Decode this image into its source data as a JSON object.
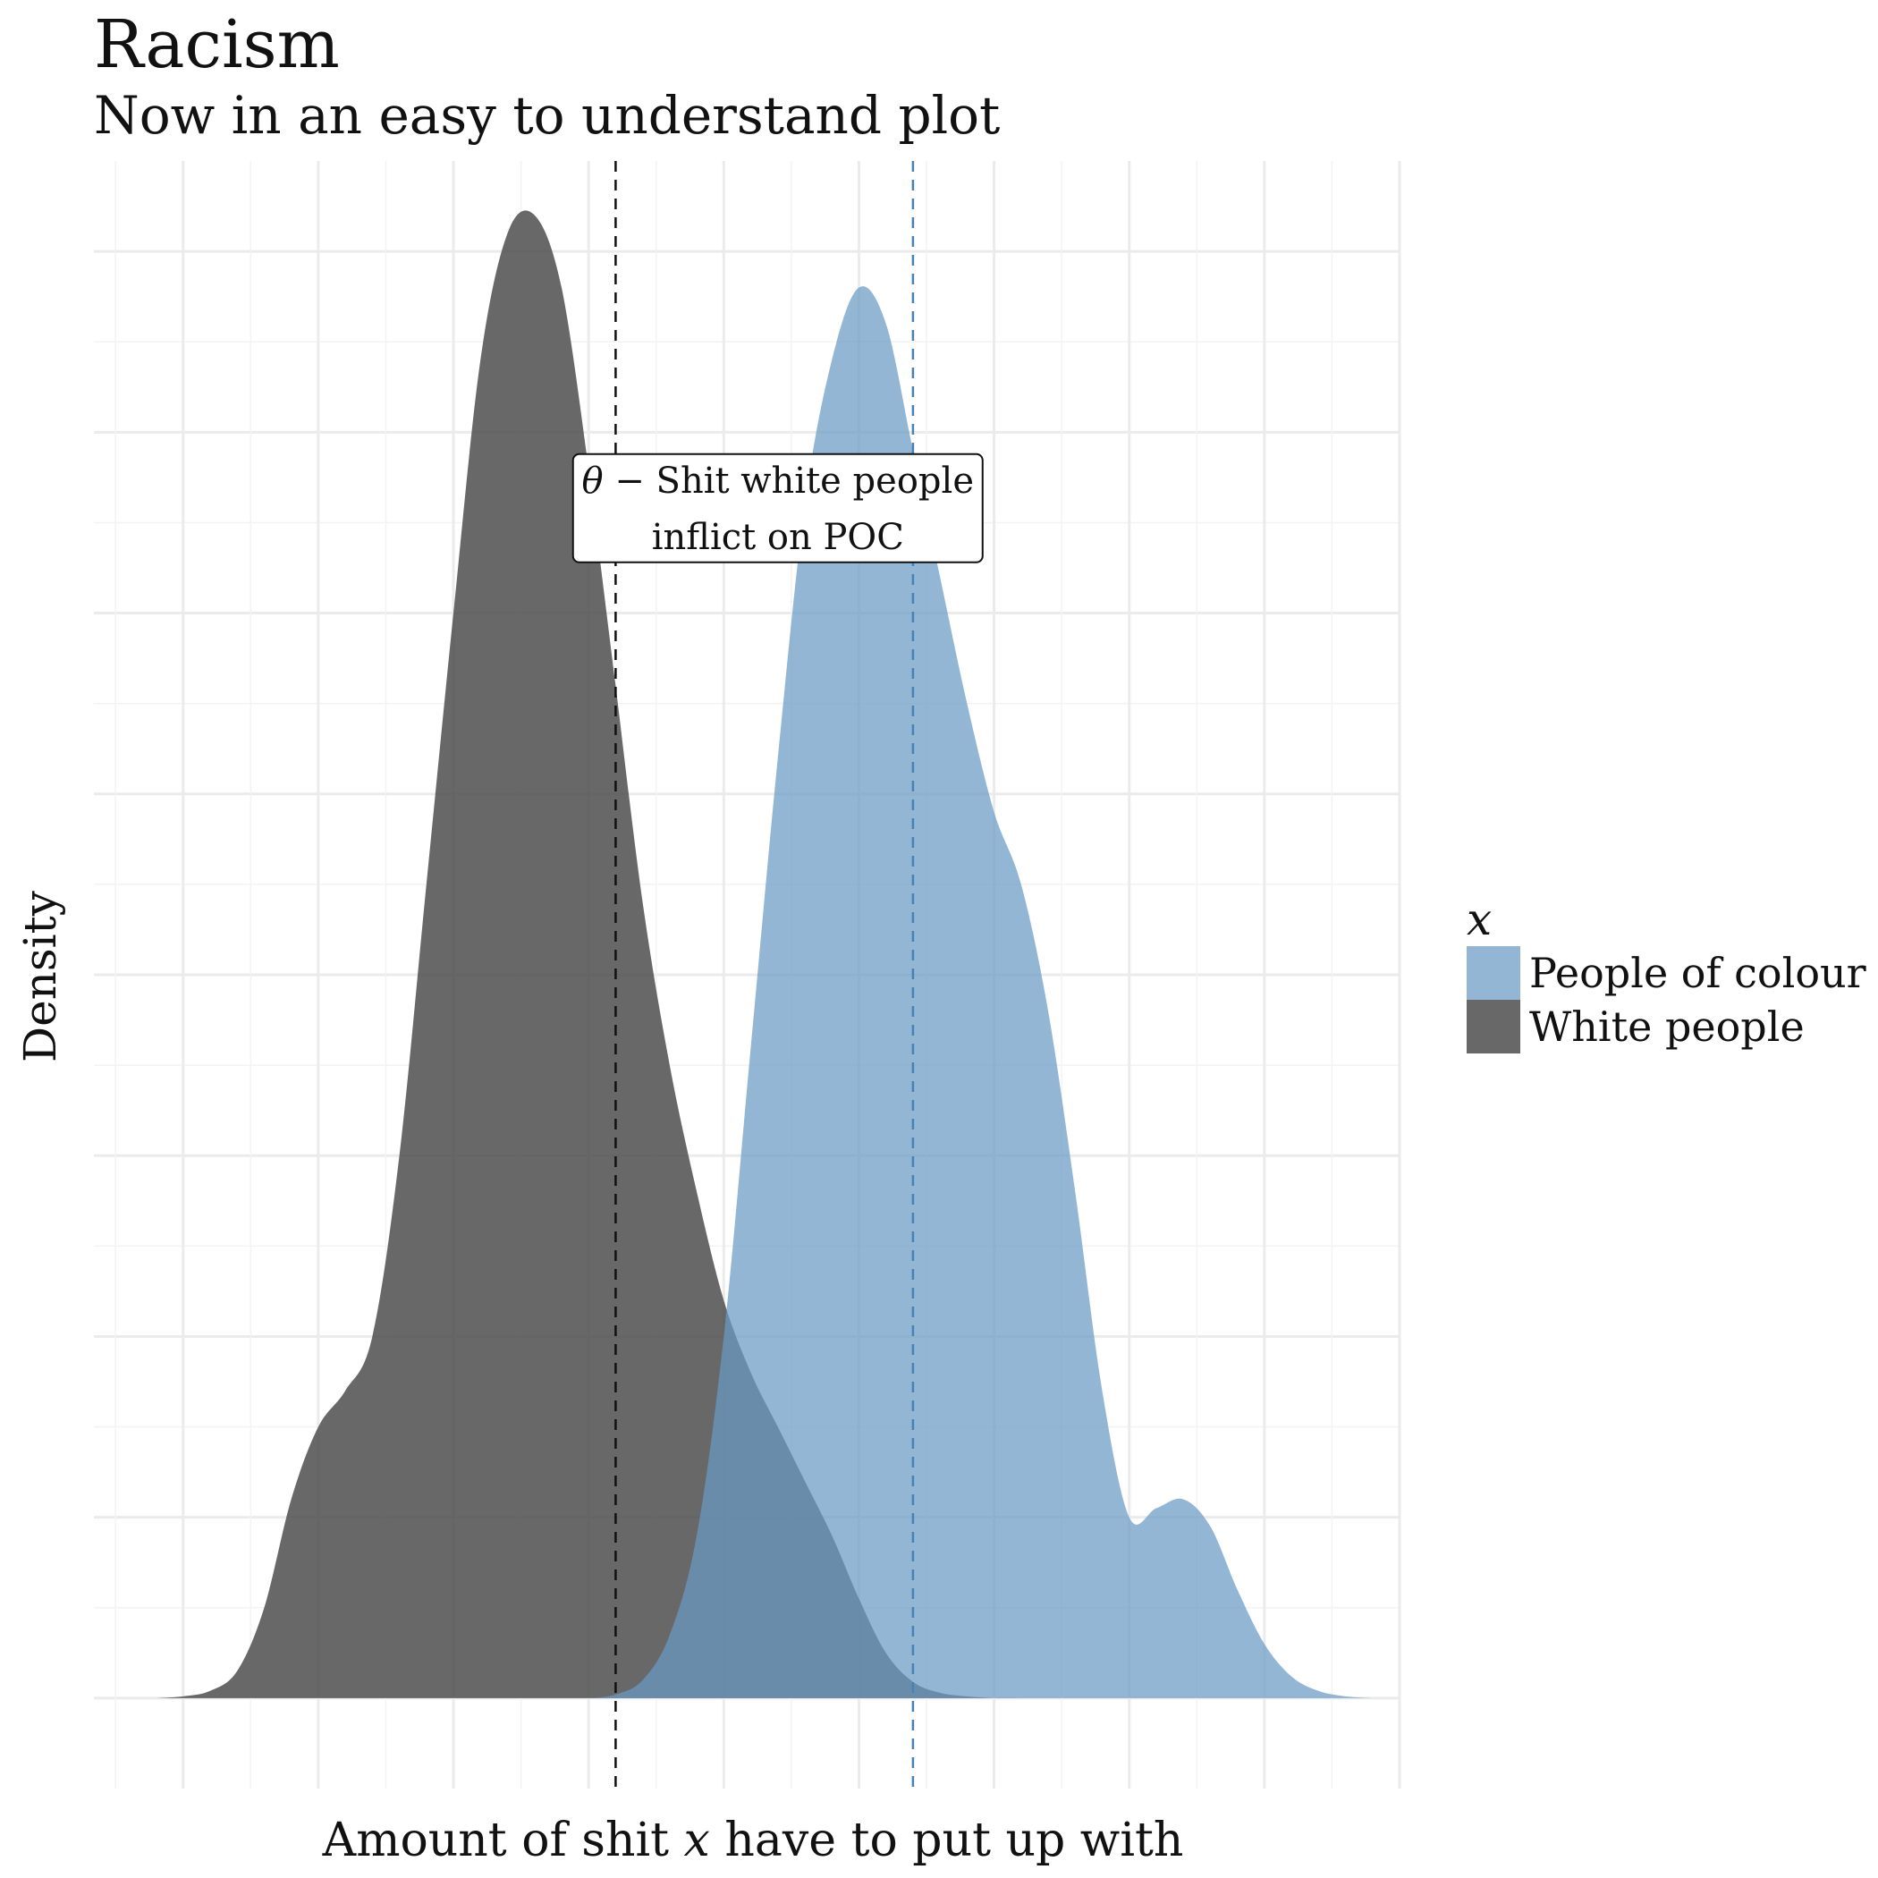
{
  "chart_data": {
    "type": "area",
    "title": "Racism",
    "subtitle": "Now in an easy to understand plot",
    "xlabel": "Amount of shit x have to put up with",
    "xlabel_parts": {
      "before": "Amount of shit ",
      "italic": "x",
      "after": " have to put up with"
    },
    "ylabel": "Density",
    "xlim": [
      -0.33,
      4.5
    ],
    "ylim": [
      -0.05,
      0.85
    ],
    "grid": true,
    "axis_tick_labels": "none",
    "legend": {
      "title": "x",
      "position": "right",
      "entries": [
        "People of colour",
        "White people"
      ]
    },
    "series": [
      {
        "name": "White people",
        "color": "#4d4d4d",
        "opacity": 0.85,
        "mean": 1.6,
        "mean_line_color": "#111111",
        "x": [
          -0.1,
          0.0,
          0.1,
          0.2,
          0.3,
          0.4,
          0.5,
          0.6,
          0.7,
          0.8,
          0.9,
          1.0,
          1.1,
          1.2,
          1.3,
          1.4,
          1.5,
          1.55,
          1.6,
          1.7,
          1.8,
          1.9,
          2.0,
          2.1,
          2.2,
          2.3,
          2.4,
          2.5,
          2.6,
          2.7,
          2.8,
          2.9,
          3.0,
          3.1,
          3.2
        ],
        "y": [
          0.0,
          0.001,
          0.004,
          0.015,
          0.05,
          0.11,
          0.15,
          0.17,
          0.2,
          0.3,
          0.45,
          0.6,
          0.74,
          0.81,
          0.82,
          0.78,
          0.68,
          0.62,
          0.56,
          0.44,
          0.35,
          0.28,
          0.22,
          0.18,
          0.15,
          0.12,
          0.09,
          0.055,
          0.025,
          0.009,
          0.003,
          0.001,
          0.0,
          0.0,
          0.0
        ]
      },
      {
        "name": "People of colour",
        "color": "#6a9ac5",
        "opacity": 0.72,
        "mean": 2.7,
        "mean_line_color": "#4682b4",
        "x": [
          1.5,
          1.6,
          1.7,
          1.8,
          1.9,
          2.0,
          2.1,
          2.2,
          2.3,
          2.4,
          2.5,
          2.6,
          2.7,
          2.8,
          2.9,
          3.0,
          3.1,
          3.2,
          3.3,
          3.4,
          3.5,
          3.6,
          3.7,
          3.8,
          3.9,
          4.0,
          4.1,
          4.2,
          4.3,
          4.4
        ],
        "y": [
          0.0,
          0.002,
          0.01,
          0.035,
          0.09,
          0.2,
          0.36,
          0.52,
          0.66,
          0.74,
          0.78,
          0.76,
          0.69,
          0.62,
          0.55,
          0.49,
          0.45,
          0.38,
          0.28,
          0.17,
          0.1,
          0.105,
          0.11,
          0.095,
          0.06,
          0.03,
          0.012,
          0.004,
          0.001,
          0.0
        ]
      }
    ],
    "annotation": {
      "line1_symbol": "θ",
      "line1_text": "− Shit white people",
      "line2": "inflict on POC",
      "x": 2.2,
      "y": 0.658
    }
  }
}
